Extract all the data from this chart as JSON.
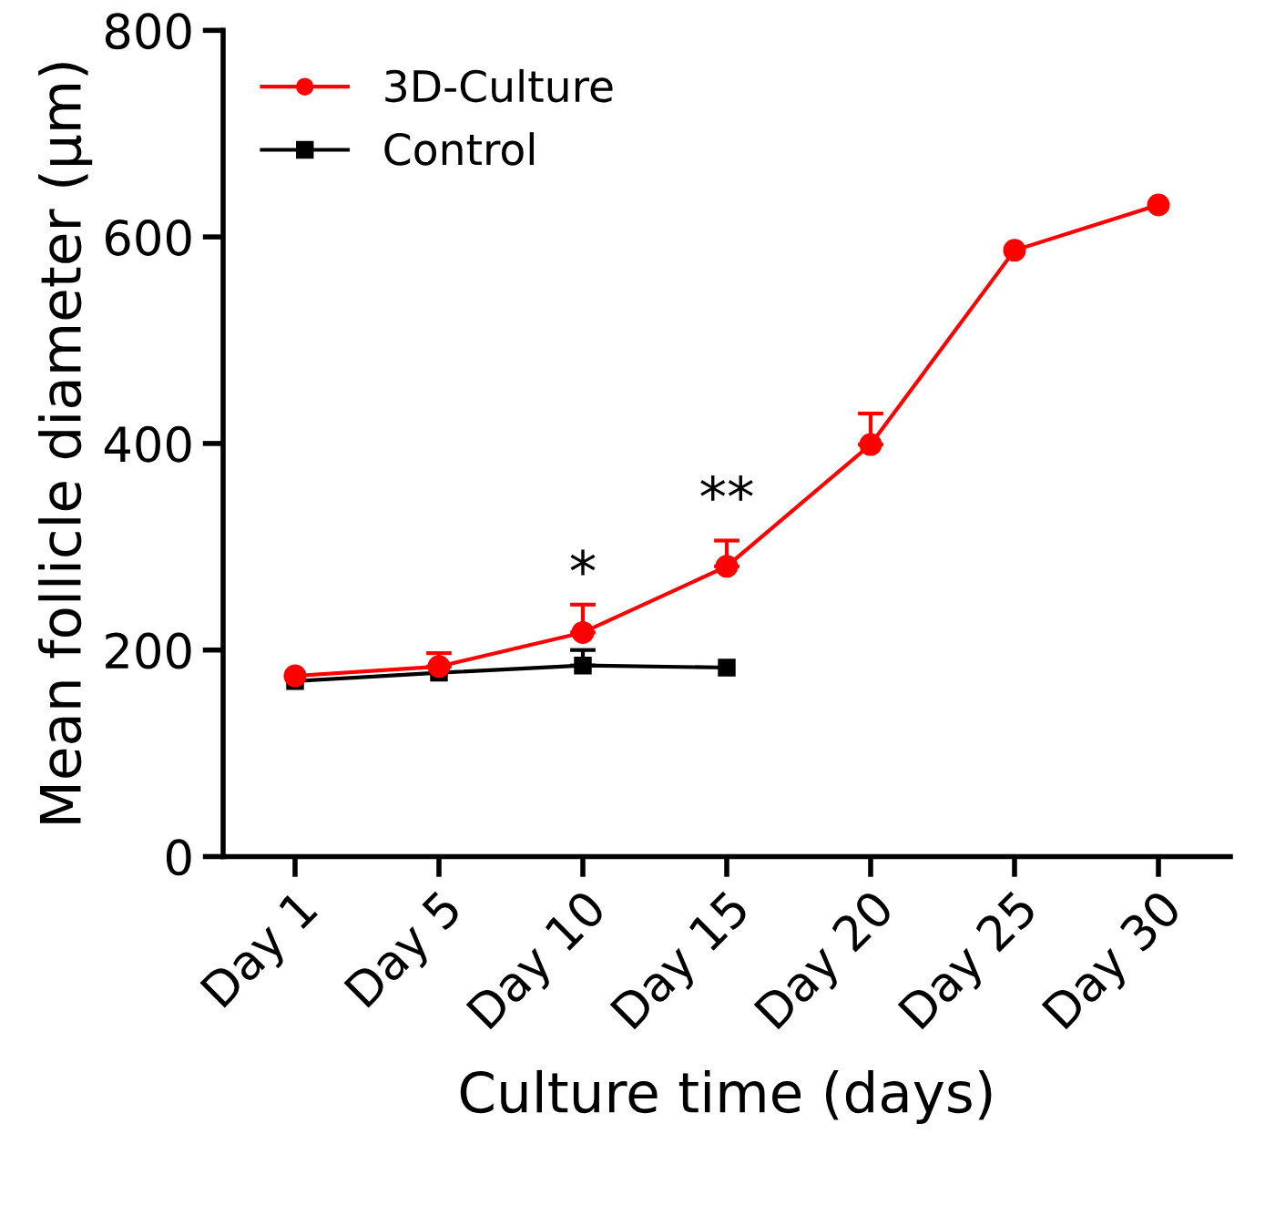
{
  "chart_data": {
    "type": "line",
    "xlabel": "Culture time (days)",
    "ylabel": "Mean follicle diameter (µm)",
    "categories": [
      "Day 1",
      "Day 5",
      "Day 10",
      "Day 15",
      "Day 20",
      "Day 25",
      "Day 30"
    ],
    "series": [
      {
        "name": "3D-Culture",
        "color": "#ff0000",
        "marker": "circle",
        "values": [
          175,
          184,
          217,
          281,
          399,
          587,
          631
        ],
        "errors": [
          null,
          [
            184,
            197
          ],
          [
            217,
            244
          ],
          [
            281,
            306
          ],
          [
            399,
            429
          ],
          null,
          null
        ]
      },
      {
        "name": "Control",
        "color": "#000000",
        "marker": "square",
        "values": [
          170,
          178,
          185,
          183,
          null,
          null,
          null
        ],
        "errors": [
          null,
          null,
          [
            185,
            200
          ],
          null,
          null,
          null,
          null
        ]
      }
    ],
    "ylim": [
      0,
      800
    ],
    "yticks": [
      0,
      200,
      400,
      600,
      800
    ],
    "grid": false,
    "legend": "top left",
    "annotations": [
      "*",
      "**"
    ]
  }
}
